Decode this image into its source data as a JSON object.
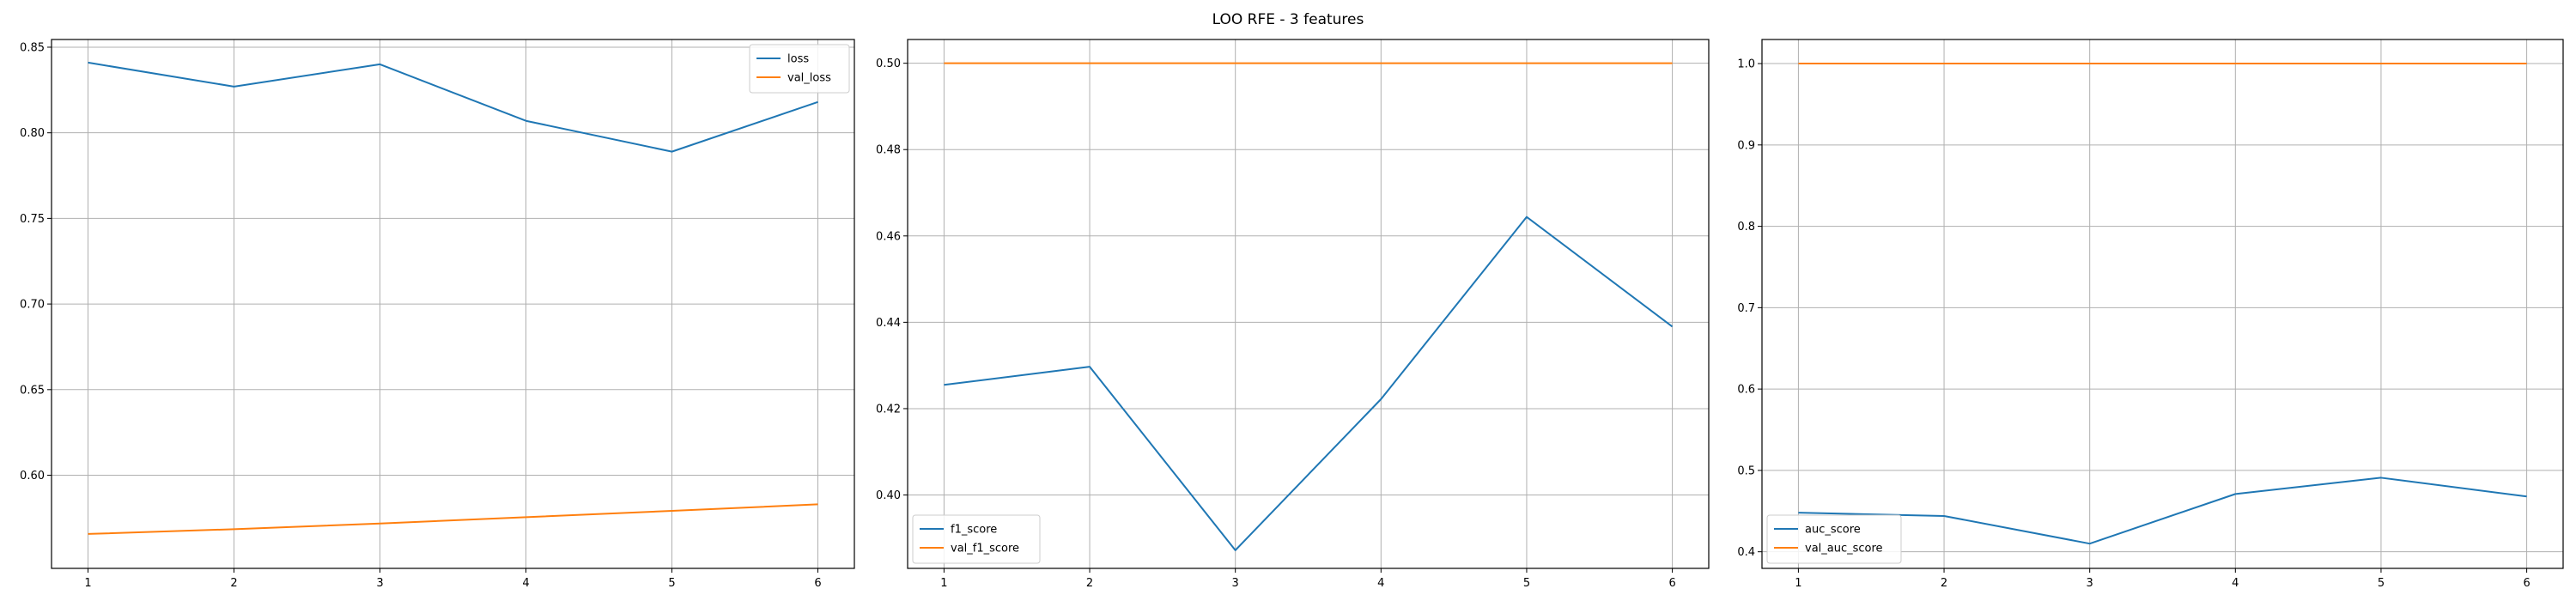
{
  "figure": {
    "title": "LOO RFE - 3 features",
    "colors": {
      "series1": "#1f77b4",
      "series2": "#ff7f0e",
      "grid": "#b0b0b0"
    }
  },
  "chart_data": [
    {
      "type": "line",
      "x": [
        1,
        2,
        3,
        4,
        5,
        6
      ],
      "xticks": [
        1,
        2,
        3,
        4,
        5,
        6
      ],
      "xlim": [
        0.75,
        6.25
      ],
      "ylim": [
        0.5456,
        0.8545
      ],
      "yticks": [
        0.6,
        0.65,
        0.7,
        0.75,
        0.8,
        0.85
      ],
      "ytick_labels": [
        "0.60",
        "0.65",
        "0.70",
        "0.75",
        "0.80",
        "0.85"
      ],
      "grid": true,
      "legend_position": "upper right",
      "series": [
        {
          "name": "loss",
          "color": "#1f77b4",
          "values": [
            0.841,
            0.827,
            0.84,
            0.807,
            0.789,
            0.818
          ]
        },
        {
          "name": "val_loss",
          "color": "#ff7f0e",
          "values": [
            0.5657,
            0.5685,
            0.5718,
            0.5755,
            0.5792,
            0.583
          ]
        }
      ]
    },
    {
      "type": "line",
      "x": [
        1,
        2,
        3,
        4,
        5,
        6
      ],
      "xticks": [
        1,
        2,
        3,
        4,
        5,
        6
      ],
      "xlim": [
        0.75,
        6.25
      ],
      "ylim": [
        0.383,
        0.5055
      ],
      "yticks": [
        0.4,
        0.42,
        0.44,
        0.46,
        0.48,
        0.5
      ],
      "ytick_labels": [
        "0.40",
        "0.42",
        "0.44",
        "0.46",
        "0.48",
        "0.50"
      ],
      "grid": true,
      "legend_position": "lower left",
      "series": [
        {
          "name": "f1_score",
          "color": "#1f77b4",
          "values": [
            0.4255,
            0.4297,
            0.3872,
            0.4222,
            0.4644,
            0.439
          ]
        },
        {
          "name": "val_f1_score",
          "color": "#ff7f0e",
          "values": [
            0.5,
            0.5,
            0.5,
            0.5,
            0.5,
            0.5
          ]
        }
      ]
    },
    {
      "type": "line",
      "x": [
        1,
        2,
        3,
        4,
        5,
        6
      ],
      "xticks": [
        1,
        2,
        3,
        4,
        5,
        6
      ],
      "xlim": [
        0.75,
        6.25
      ],
      "ylim": [
        0.3796,
        1.0296
      ],
      "yticks": [
        0.4,
        0.5,
        0.6,
        0.7,
        0.8,
        0.9,
        1.0
      ],
      "ytick_labels": [
        "0.4",
        "0.5",
        "0.6",
        "0.7",
        "0.8",
        "0.9",
        "1.0"
      ],
      "grid": true,
      "legend_position": "lower left",
      "series": [
        {
          "name": "auc_score",
          "color": "#1f77b4",
          "values": [
            0.448,
            0.444,
            0.41,
            0.471,
            0.491,
            0.468
          ]
        },
        {
          "name": "val_auc_score",
          "color": "#ff7f0e",
          "values": [
            1.0,
            1.0,
            1.0,
            1.0,
            1.0,
            1.0
          ]
        }
      ]
    }
  ]
}
